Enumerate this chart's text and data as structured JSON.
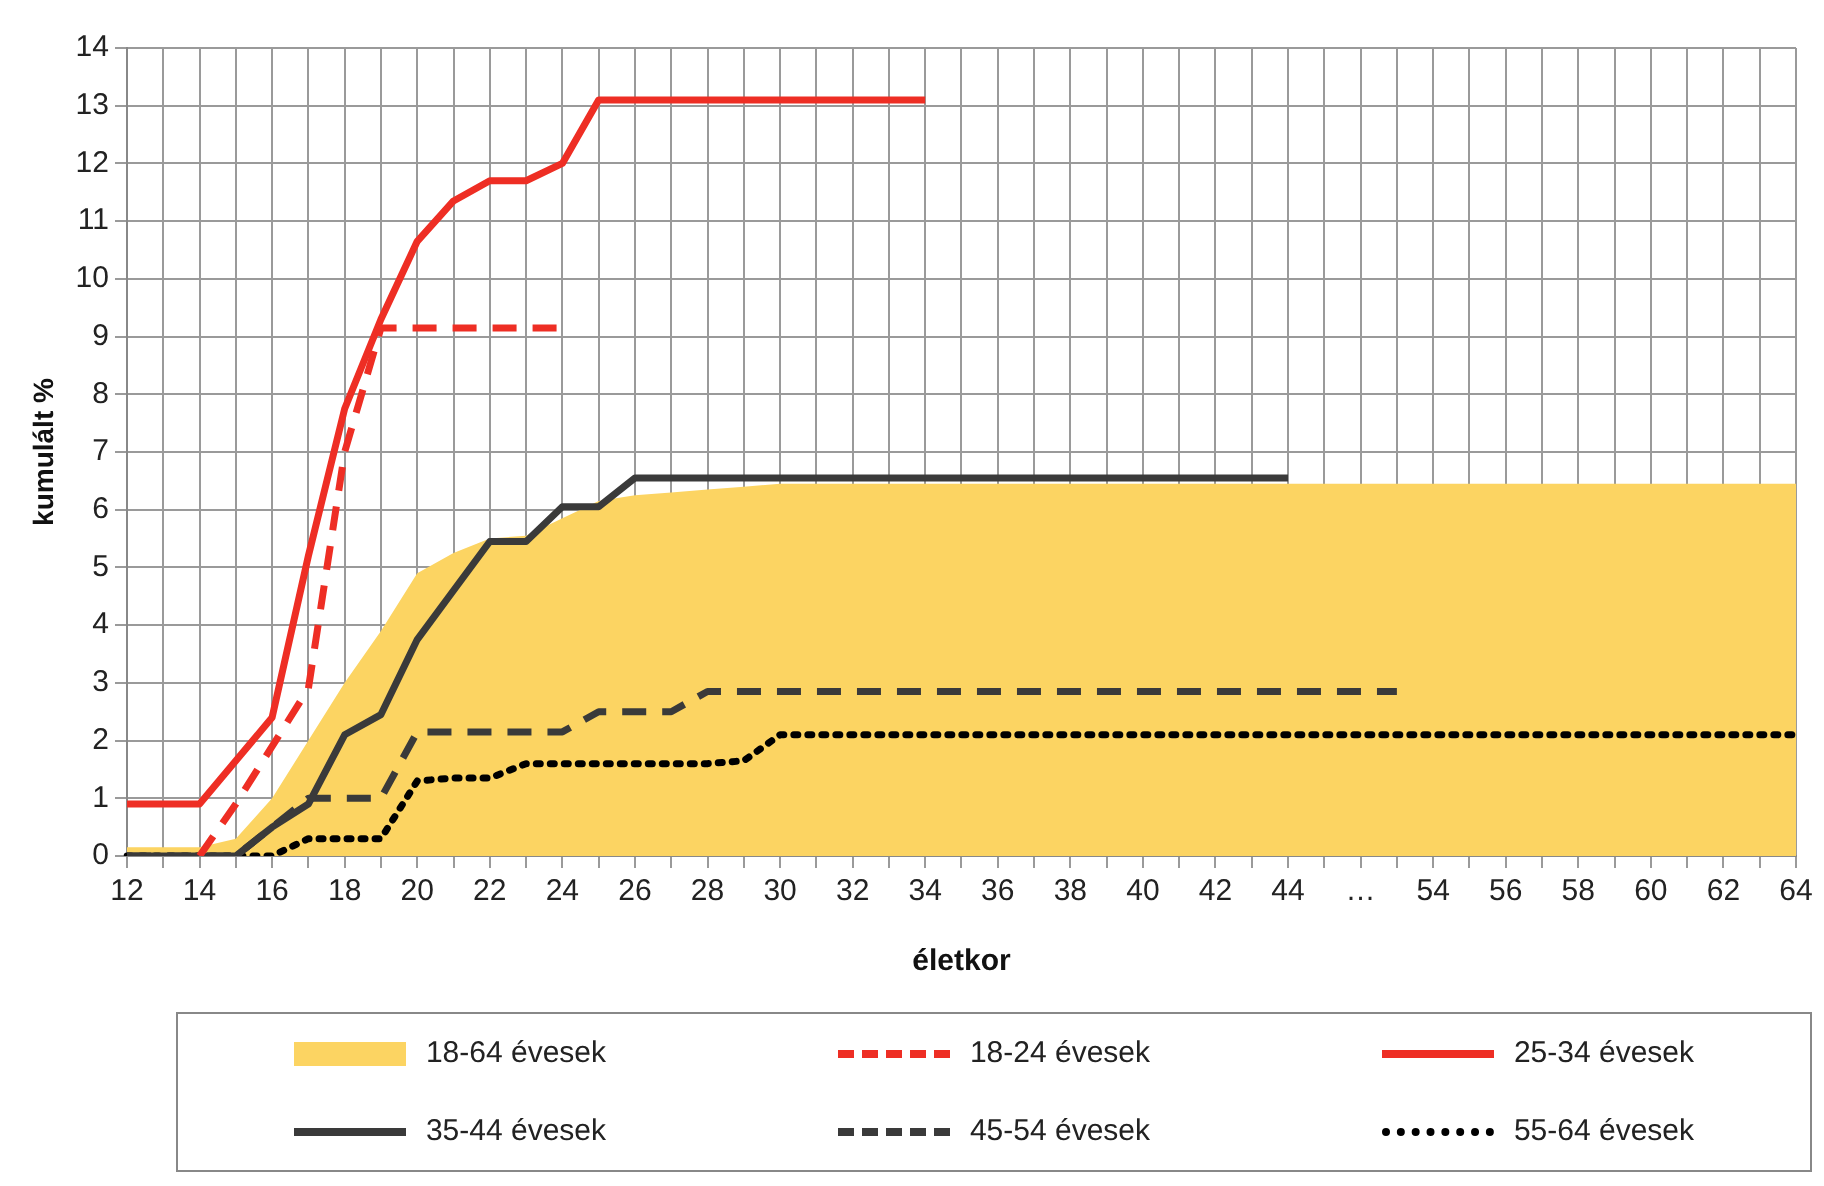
{
  "chart_data": {
    "type": "line",
    "xlabel": "életkor",
    "ylabel": "kumulált %",
    "categories": [
      "12",
      null,
      "14",
      null,
      "16",
      null,
      "18",
      null,
      "20",
      null,
      "22",
      null,
      "24",
      null,
      "26",
      null,
      "28",
      null,
      "30",
      null,
      "32",
      null,
      "34",
      null,
      "36",
      null,
      "38",
      null,
      "40",
      null,
      "42",
      null,
      "44",
      null,
      "…",
      null,
      "54",
      null,
      "56",
      null,
      "58",
      null,
      "60",
      null,
      "62",
      null,
      "64"
    ],
    "ylim": [
      0,
      14
    ],
    "yticks": [
      0,
      1,
      2,
      3,
      4,
      5,
      6,
      7,
      8,
      9,
      10,
      11,
      12,
      13,
      14
    ],
    "grid": true,
    "legend": "bottom",
    "series": [
      {
        "name": "18-64 évesek",
        "type": "area",
        "color": "#fcd462",
        "values": [
          0.15,
          0.15,
          0.15,
          0.3,
          1.0,
          2.0,
          3.0,
          3.9,
          4.9,
          5.25,
          5.5,
          5.55,
          5.85,
          6.15,
          6.25,
          6.3,
          6.35,
          6.4,
          6.45,
          6.45,
          6.45,
          6.45,
          6.45,
          6.45,
          6.45,
          6.45,
          6.45,
          6.45,
          6.45,
          6.45,
          6.45,
          6.45,
          6.45,
          6.45,
          6.45,
          6.45,
          6.45,
          6.45,
          6.45,
          6.45,
          6.45,
          6.45,
          6.45,
          6.45,
          6.45,
          6.45,
          6.45
        ]
      },
      {
        "name": "18-24 évesek",
        "type": "line",
        "line_style": "dashed",
        "color": "#ee2e24",
        "values": [
          null,
          null,
          0,
          0.9,
          1.9,
          2.9,
          7.0,
          9.15,
          9.15,
          9.15,
          9.15,
          9.15,
          9.15,
          null,
          null,
          null,
          null,
          null,
          null,
          null,
          null,
          null,
          null,
          null,
          null,
          null,
          null,
          null,
          null,
          null,
          null,
          null,
          null,
          null,
          null,
          null,
          null,
          null,
          null,
          null,
          null,
          null,
          null,
          null,
          null,
          null,
          null
        ]
      },
      {
        "name": "25-34 évesek",
        "type": "line",
        "line_style": "solid",
        "color": "#ee2e24",
        "values": [
          0.9,
          0.9,
          0.9,
          1.65,
          2.4,
          5.2,
          7.75,
          9.3,
          10.65,
          11.35,
          11.7,
          11.7,
          12.0,
          13.1,
          13.1,
          13.1,
          13.1,
          13.1,
          13.1,
          13.1,
          13.1,
          13.1,
          13.1,
          null,
          null,
          null,
          null,
          null,
          null,
          null,
          null,
          null,
          null,
          null,
          null,
          null,
          null,
          null,
          null,
          null,
          null,
          null,
          null,
          null,
          null,
          null,
          null
        ]
      },
      {
        "name": "35-44 évesek",
        "type": "line",
        "line_style": "solid",
        "color": "#3a3a3a",
        "values": [
          0,
          0,
          0,
          0,
          0.5,
          0.9,
          2.1,
          2.45,
          3.75,
          4.6,
          5.45,
          5.45,
          6.05,
          6.05,
          6.55,
          6.55,
          6.55,
          6.55,
          6.55,
          6.55,
          6.55,
          6.55,
          6.55,
          6.55,
          6.55,
          6.55,
          6.55,
          6.55,
          6.55,
          6.55,
          6.55,
          6.55,
          6.55,
          null,
          null,
          null,
          null,
          null,
          null,
          null,
          null,
          null,
          null,
          null,
          null,
          null,
          null
        ]
      },
      {
        "name": "45-54 évesek",
        "type": "line",
        "line_style": "dashed",
        "color": "#3a3a3a",
        "values": [
          0,
          0,
          0,
          0,
          0.5,
          1.0,
          1.0,
          1.0,
          2.15,
          2.15,
          2.15,
          2.15,
          2.15,
          2.5,
          2.5,
          2.5,
          2.85,
          2.85,
          2.85,
          2.85,
          2.85,
          2.85,
          2.85,
          2.85,
          2.85,
          2.85,
          2.85,
          2.85,
          2.85,
          2.85,
          2.85,
          2.85,
          2.85,
          2.85,
          2.85,
          2.85,
          null,
          null,
          null,
          null,
          null,
          null,
          null,
          null,
          null,
          null,
          null
        ]
      },
      {
        "name": "55-64 évesek",
        "type": "line",
        "line_style": "dotted",
        "color": "#000000",
        "values": [
          0,
          0,
          0,
          0,
          0,
          0.3,
          0.3,
          0.3,
          1.3,
          1.35,
          1.35,
          1.6,
          1.6,
          1.6,
          1.6,
          1.6,
          1.6,
          1.65,
          2.1,
          2.1,
          2.1,
          2.1,
          2.1,
          2.1,
          2.1,
          2.1,
          2.1,
          2.1,
          2.1,
          2.1,
          2.1,
          2.1,
          2.1,
          2.1,
          2.1,
          2.1,
          2.1,
          2.1,
          2.1,
          2.1,
          2.1,
          2.1,
          2.1,
          2.1,
          2.1,
          2.1,
          2.1
        ]
      }
    ]
  }
}
